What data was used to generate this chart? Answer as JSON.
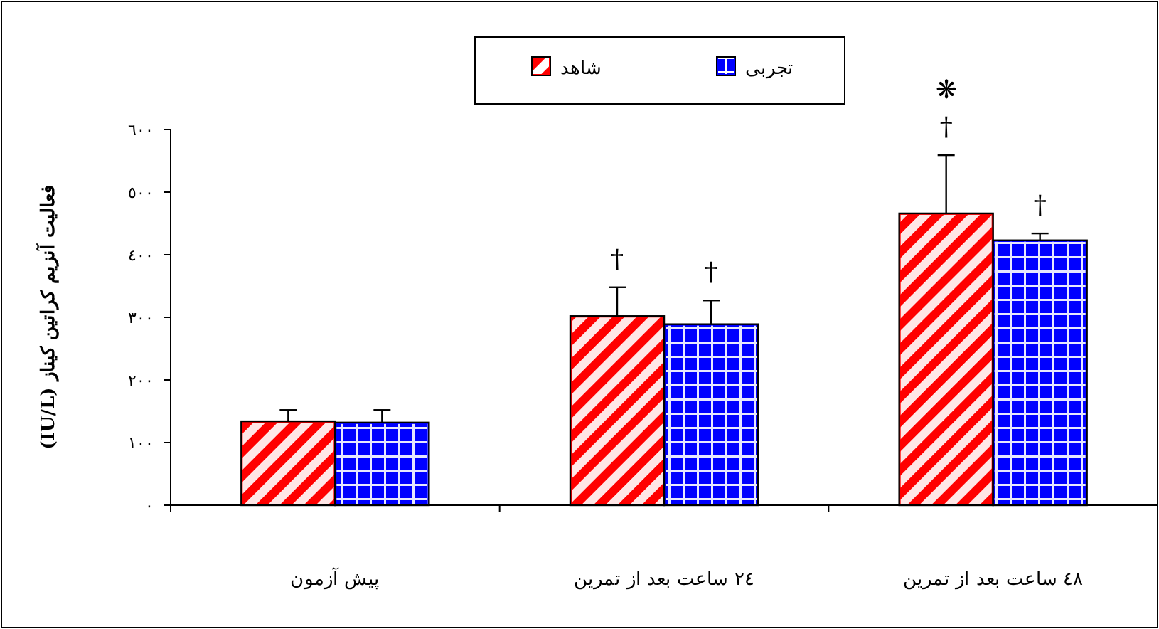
{
  "chart_data": {
    "type": "bar",
    "ylabel": "فعالیت آنزیم کراتین کیناز (IU/L)",
    "categories": [
      "پیش آزمون",
      "٢٤ ساعت بعد از تمرین",
      "٤٨ ساعت بعد از تمرین"
    ],
    "series": [
      {
        "name": "شاهد",
        "color": "#ff0000",
        "values": [
          134,
          302,
          466
        ],
        "errors": [
          18,
          46,
          93
        ],
        "value_labels": [
          null,
          "†",
          "❋\n†"
        ]
      },
      {
        "name": "تجربی",
        "color": "#0000ff",
        "values": [
          132,
          289,
          423
        ],
        "errors": [
          20,
          38,
          11
        ],
        "value_labels": [
          null,
          "†",
          "†"
        ]
      }
    ],
    "ylim": [
      0,
      600
    ],
    "yticks": [
      {
        "value": 0,
        "label": "٠"
      },
      {
        "value": 100,
        "label": "١٠٠"
      },
      {
        "value": 200,
        "label": "٢٠٠"
      },
      {
        "value": 300,
        "label": "٣٠٠"
      },
      {
        "value": 400,
        "label": "٤٠٠"
      },
      {
        "value": 500,
        "label": "٥٠٠"
      },
      {
        "value": 600,
        "label": "٦٠٠"
      }
    ],
    "grid": false,
    "legend": "top"
  }
}
